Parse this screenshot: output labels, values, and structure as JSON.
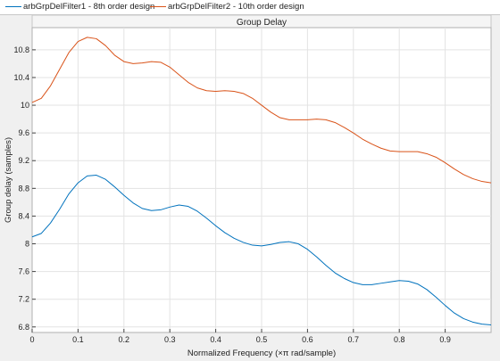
{
  "chart_data": {
    "type": "line",
    "title": "Group Delay",
    "xlabel": "Normalized Frequency (×π rad/sample)",
    "ylabel": "Group delay (samples)",
    "xlim": [
      0,
      1
    ],
    "ylim": [
      6.72,
      11.12
    ],
    "x_ticks": [
      "0",
      "0.1",
      "0.2",
      "0.3",
      "0.4",
      "0.5",
      "0.6",
      "0.7",
      "0.8",
      "0.9"
    ],
    "y_ticks": [
      "6.8",
      "7.2",
      "7.6",
      "8",
      "8.4",
      "8.8",
      "9.2",
      "9.6",
      "10",
      "10.4",
      "10.8"
    ],
    "grid": true,
    "legend_position": "top",
    "series": [
      {
        "name": "arbGrpDelFilter1 - 8th order design",
        "color": "#0072BD",
        "x": [
          0,
          0.02,
          0.04,
          0.06,
          0.08,
          0.1,
          0.12,
          0.14,
          0.16,
          0.18,
          0.2,
          0.22,
          0.24,
          0.26,
          0.28,
          0.3,
          0.32,
          0.34,
          0.36,
          0.38,
          0.4,
          0.42,
          0.44,
          0.46,
          0.48,
          0.5,
          0.52,
          0.54,
          0.56,
          0.58,
          0.6,
          0.62,
          0.64,
          0.66,
          0.68,
          0.7,
          0.72,
          0.74,
          0.76,
          0.78,
          0.8,
          0.82,
          0.84,
          0.86,
          0.88,
          0.9,
          0.92,
          0.94,
          0.96,
          0.98,
          1.0
        ],
        "values": [
          8.1,
          8.15,
          8.3,
          8.5,
          8.72,
          8.88,
          8.98,
          8.99,
          8.93,
          8.82,
          8.7,
          8.59,
          8.51,
          8.48,
          8.49,
          8.53,
          8.56,
          8.54,
          8.47,
          8.37,
          8.26,
          8.16,
          8.08,
          8.02,
          7.98,
          7.97,
          7.99,
          8.02,
          8.03,
          8.0,
          7.92,
          7.81,
          7.69,
          7.58,
          7.5,
          7.44,
          7.41,
          7.41,
          7.43,
          7.45,
          7.47,
          7.46,
          7.42,
          7.34,
          7.23,
          7.11,
          7.0,
          6.92,
          6.87,
          6.84,
          6.83
        ]
      },
      {
        "name": "arbGrpDelFilter2 - 10th order design",
        "color": "#D95319",
        "x": [
          0,
          0.02,
          0.04,
          0.06,
          0.08,
          0.1,
          0.12,
          0.14,
          0.16,
          0.18,
          0.2,
          0.22,
          0.24,
          0.26,
          0.28,
          0.3,
          0.32,
          0.34,
          0.36,
          0.38,
          0.4,
          0.42,
          0.44,
          0.46,
          0.48,
          0.5,
          0.52,
          0.54,
          0.56,
          0.58,
          0.6,
          0.62,
          0.64,
          0.66,
          0.68,
          0.7,
          0.72,
          0.74,
          0.76,
          0.78,
          0.8,
          0.82,
          0.84,
          0.86,
          0.88,
          0.9,
          0.92,
          0.94,
          0.96,
          0.98,
          1.0
        ],
        "values": [
          10.04,
          10.1,
          10.28,
          10.52,
          10.76,
          10.92,
          10.98,
          10.96,
          10.86,
          10.72,
          10.63,
          10.6,
          10.61,
          10.63,
          10.62,
          10.55,
          10.44,
          10.33,
          10.25,
          10.21,
          10.2,
          10.21,
          10.2,
          10.17,
          10.1,
          10.0,
          9.9,
          9.82,
          9.79,
          9.79,
          9.79,
          9.8,
          9.79,
          9.75,
          9.68,
          9.6,
          9.51,
          9.44,
          9.38,
          9.34,
          9.33,
          9.33,
          9.33,
          9.3,
          9.25,
          9.17,
          9.08,
          9.0,
          8.94,
          8.9,
          8.88
        ]
      }
    ]
  }
}
